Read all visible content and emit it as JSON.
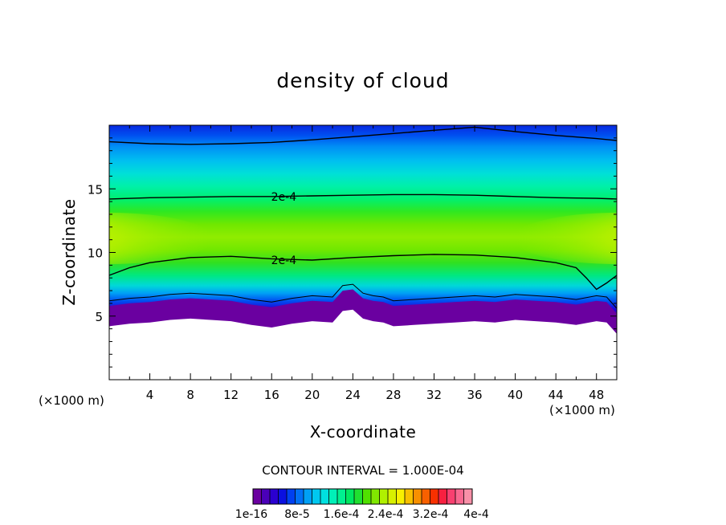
{
  "chart_data": {
    "type": "heatmap",
    "title": "density of cloud",
    "xlabel": "X-coordinate",
    "ylabel": "Z-coordinate",
    "x_unit_left": "(×1000 m)",
    "x_unit_right": "(×1000 m)",
    "xlim": [
      0,
      50
    ],
    "ylim": [
      0,
      20
    ],
    "x_ticks": [
      "4",
      "8",
      "12",
      "16",
      "20",
      "24",
      "28",
      "32",
      "36",
      "40",
      "44",
      "48"
    ],
    "x_tick_values": [
      4,
      8,
      12,
      16,
      20,
      24,
      28,
      32,
      36,
      40,
      44,
      48
    ],
    "y_ticks": [
      "5",
      "10",
      "15"
    ],
    "y_tick_values": [
      5,
      10,
      15
    ],
    "contour_interval_text": "CONTOUR INTERVAL = 1.000E-04",
    "contour_label_lower": "2e-4",
    "contour_label_upper": "2e-4",
    "contour_label_positions": [
      [
        17.2,
        9.4
      ],
      [
        17.2,
        14.4
      ]
    ],
    "upper_contour_2e4": {
      "x": [
        0,
        4,
        8,
        12,
        16,
        20,
        24,
        28,
        32,
        36,
        40,
        44,
        48,
        50
      ],
      "z": [
        14.2,
        14.3,
        14.35,
        14.4,
        14.4,
        14.45,
        14.5,
        14.55,
        14.55,
        14.5,
        14.4,
        14.3,
        14.25,
        14.2
      ]
    },
    "lower_contour_2e4": {
      "x": [
        0,
        2,
        4,
        8,
        12,
        16,
        20,
        24,
        28,
        32,
        36,
        40,
        44,
        46,
        47,
        48,
        49,
        50
      ],
      "z": [
        8.2,
        8.8,
        9.2,
        9.6,
        9.7,
        9.5,
        9.4,
        9.6,
        9.75,
        9.85,
        9.8,
        9.6,
        9.2,
        8.8,
        8.0,
        7.1,
        7.6,
        8.2
      ]
    },
    "top_contour": {
      "x": [
        0,
        4,
        8,
        12,
        16,
        20,
        24,
        28,
        32,
        36,
        40,
        44,
        48,
        50
      ],
      "z": [
        18.7,
        18.55,
        18.5,
        18.55,
        18.65,
        18.85,
        19.1,
        19.35,
        19.6,
        19.85,
        19.5,
        19.2,
        18.95,
        18.8
      ]
    },
    "cloud_base": {
      "x": [
        0,
        2,
        4,
        6,
        8,
        10,
        12,
        14,
        16,
        18,
        20,
        22,
        23,
        24,
        25,
        26,
        27,
        28,
        30,
        32,
        34,
        36,
        38,
        40,
        42,
        44,
        46,
        48,
        49,
        50
      ],
      "z": [
        4.2,
        4.4,
        4.5,
        4.7,
        4.8,
        4.7,
        4.6,
        4.3,
        4.1,
        4.4,
        4.6,
        4.5,
        5.4,
        5.5,
        4.8,
        4.6,
        4.5,
        4.2,
        4.3,
        4.4,
        4.5,
        4.6,
        4.5,
        4.7,
        4.6,
        4.5,
        4.3,
        4.6,
        4.5,
        3.6
      ]
    },
    "field_peak_zone": {
      "center_z": 11.2,
      "edge_max_x": [
        0,
        50
      ]
    },
    "colorbar": {
      "colors": [
        "#6a00a0",
        "#4a00b8",
        "#2a00d0",
        "#0a10e0",
        "#0040f0",
        "#0070f5",
        "#00a0f5",
        "#00c8f0",
        "#00e0e0",
        "#00f0b8",
        "#00f090",
        "#00e860",
        "#20e030",
        "#50e000",
        "#80e800",
        "#b0f000",
        "#d8f000",
        "#f8f000",
        "#f8c000",
        "#f89000",
        "#f86000",
        "#f83000",
        "#f82040",
        "#f84070",
        "#f86890",
        "#f890a8"
      ],
      "tick_labels": [
        "1e-16",
        "8e-5",
        "1.6e-4",
        "2.4e-4",
        "3.2e-4",
        "4e-4"
      ]
    }
  }
}
